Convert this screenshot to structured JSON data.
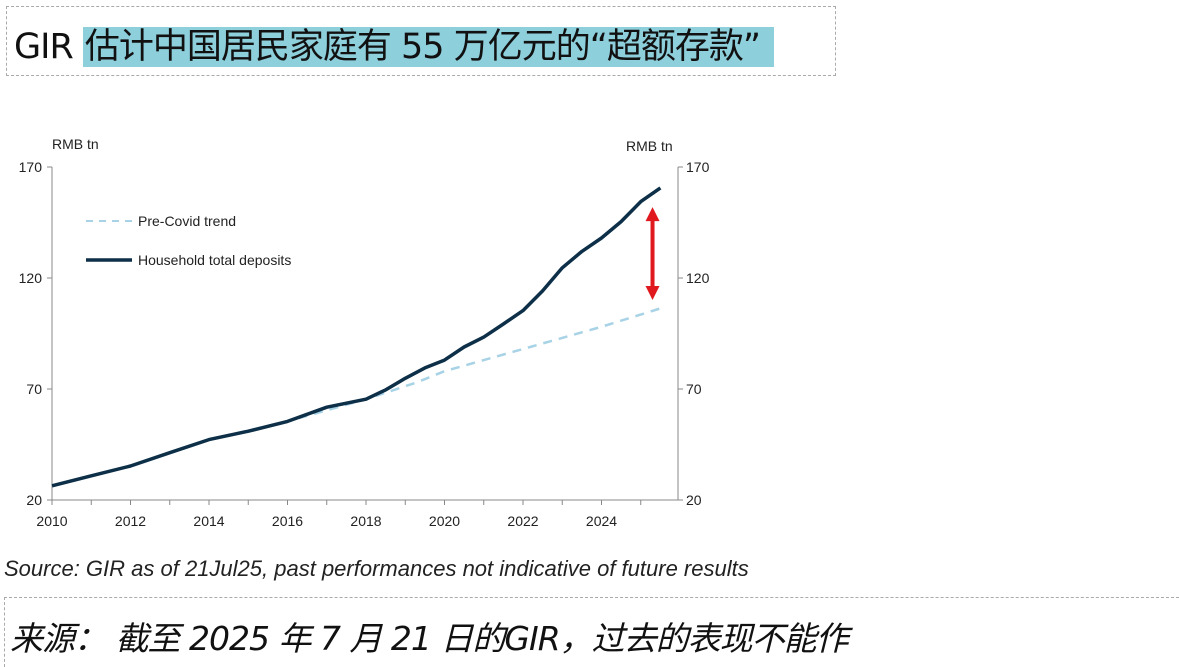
{
  "header": {
    "prefix": "GIR",
    "highlight": "估计中国居民家庭有 55 万亿元的“超额存款”"
  },
  "source": "Source: GIR as of 21Jul25, past performances not indicative of future results",
  "source_cn": "来源： 截至 2025 年 7 月 21 日的GIR，过去的表现不能作",
  "chart_data": {
    "type": "line",
    "ylabel_left": "RMB tn",
    "ylabel_right": "RMB tn",
    "ylim": [
      20,
      170
    ],
    "yticks": [
      "20",
      "70",
      "120",
      "170"
    ],
    "xlim": [
      2010,
      2025.7
    ],
    "xticks": [
      "2010",
      "2012",
      "2014",
      "2016",
      "2018",
      "2020",
      "2022",
      "2024"
    ],
    "grid": false,
    "legend_position": "top-left",
    "colors": {
      "deposits": "#0d2f48",
      "trend": "#a8d3e6",
      "arrow": "#e0191e"
    },
    "series": [
      {
        "name": "Pre-Covid trend",
        "style": "dashed",
        "x": [
          2010,
          2012,
          2014,
          2016,
          2018,
          2019.3,
          2020,
          2022,
          2024,
          2025.5
        ],
        "values": [
          26.4,
          35.3,
          47.2,
          55.4,
          65.4,
          73,
          78,
          88,
          98,
          106.3
        ]
      },
      {
        "name": "Household total deposits",
        "style": "solid",
        "x": [
          2010,
          2011,
          2012,
          2013,
          2014,
          2015,
          2016,
          2017,
          2018,
          2018.5,
          2019,
          2019.5,
          2020,
          2020.5,
          2021,
          2021.5,
          2022,
          2022.5,
          2023,
          2023.5,
          2024,
          2024.5,
          2025,
          2025.5
        ],
        "values": [
          26.4,
          30.9,
          35.3,
          41.3,
          47.2,
          51,
          55.4,
          61.8,
          65.4,
          69.6,
          74.8,
          79.5,
          83,
          88.9,
          93.4,
          99.3,
          105.3,
          114.2,
          124.6,
          132,
          138,
          145.4,
          154.4,
          160.6
        ]
      }
    ],
    "annotation": {
      "type": "double-arrow",
      "x": 2025.3,
      "from": 111,
      "to": 151
    }
  }
}
